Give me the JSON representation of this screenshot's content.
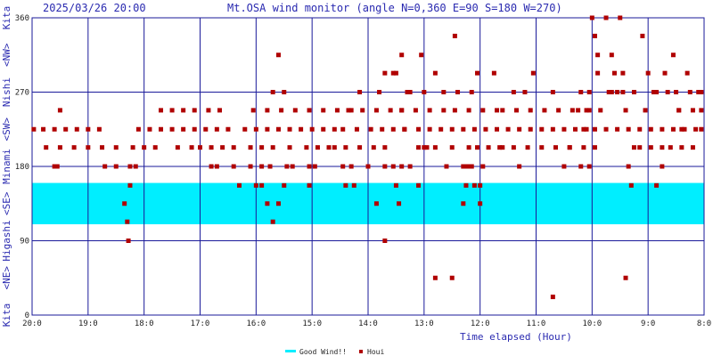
{
  "header": {
    "timestamp": "2025/03/26 20:00",
    "title": "Mt.OSA wind monitor (angle N=0,360 E=90 S=180 W=270)"
  },
  "left_axis_labels": [
    "Kita",
    "<NE>",
    "Higashi",
    "<SE>",
    "Minami",
    "<SW>",
    "Nishi",
    "<NW>",
    "Kita"
  ],
  "legend": {
    "good_wind": "Good Wind!!",
    "series": "Houi"
  },
  "colors": {
    "good_wind_band": "#00eeff",
    "marker": "#b00000",
    "grid": "#1a1a9a",
    "text": "#2a2ab0"
  },
  "chart_data": {
    "type": "scatter",
    "title": "Mt.OSA wind monitor (angle N=0,360 E=90 S=180 W=270)",
    "xlabel": "Time elapsed (Hour)",
    "ylabel": "",
    "xlim": [
      0,
      12
    ],
    "ylim": [
      0,
      360
    ],
    "x_tick_labels": [
      "20:0",
      "19:0",
      "18:0",
      "17:0",
      "16:0",
      "15:0",
      "14:0",
      "13:0",
      "12:0",
      "11:0",
      "10:0",
      "9:0",
      "8:0"
    ],
    "y_ticks": [
      0,
      90,
      180,
      270,
      360
    ],
    "good_wind_band": [
      110,
      160
    ],
    "grid": true,
    "legend_position": "bottom",
    "series": [
      {
        "name": "Houi",
        "points": [
          [
            0.03,
            225
          ],
          [
            0.2,
            225
          ],
          [
            0.4,
            225
          ],
          [
            0.6,
            225
          ],
          [
            0.8,
            225
          ],
          [
            1.0,
            225
          ],
          [
            1.2,
            225
          ],
          [
            0.25,
            203
          ],
          [
            0.5,
            203
          ],
          [
            0.75,
            203
          ],
          [
            1.0,
            203
          ],
          [
            1.25,
            203
          ],
          [
            1.5,
            203
          ],
          [
            0.4,
            180
          ],
          [
            0.45,
            180
          ],
          [
            1.3,
            180
          ],
          [
            1.5,
            180
          ],
          [
            1.75,
            180
          ],
          [
            0.5,
            248
          ],
          [
            1.65,
            135
          ],
          [
            1.7,
            113
          ],
          [
            1.72,
            90
          ],
          [
            1.75,
            157
          ],
          [
            1.8,
            203
          ],
          [
            1.85,
            180
          ],
          [
            1.9,
            225
          ],
          [
            2.1,
            225
          ],
          [
            2.3,
            225
          ],
          [
            2.5,
            225
          ],
          [
            2.7,
            225
          ],
          [
            2.9,
            225
          ],
          [
            3.1,
            225
          ],
          [
            3.3,
            225
          ],
          [
            3.5,
            225
          ],
          [
            2.0,
            203
          ],
          [
            2.2,
            203
          ],
          [
            2.6,
            203
          ],
          [
            2.85,
            203
          ],
          [
            3.0,
            203
          ],
          [
            3.2,
            203
          ],
          [
            3.4,
            203
          ],
          [
            3.6,
            203
          ],
          [
            2.3,
            248
          ],
          [
            2.5,
            248
          ],
          [
            2.7,
            248
          ],
          [
            2.9,
            248
          ],
          [
            3.15,
            248
          ],
          [
            3.35,
            248
          ],
          [
            3.2,
            180
          ],
          [
            3.3,
            180
          ],
          [
            3.6,
            180
          ],
          [
            3.7,
            157
          ],
          [
            3.9,
            180
          ],
          [
            3.8,
            225
          ],
          [
            4.0,
            225
          ],
          [
            4.2,
            225
          ],
          [
            4.4,
            225
          ],
          [
            4.6,
            225
          ],
          [
            4.8,
            225
          ],
          [
            5.0,
            225
          ],
          [
            5.2,
            225
          ],
          [
            5.4,
            225
          ],
          [
            3.9,
            203
          ],
          [
            4.1,
            203
          ],
          [
            4.3,
            203
          ],
          [
            4.6,
            203
          ],
          [
            4.9,
            203
          ],
          [
            5.1,
            203
          ],
          [
            5.3,
            203
          ],
          [
            3.95,
            248
          ],
          [
            4.2,
            248
          ],
          [
            4.45,
            248
          ],
          [
            4.7,
            248
          ],
          [
            4.95,
            248
          ],
          [
            5.2,
            248
          ],
          [
            5.45,
            248
          ],
          [
            4.3,
            270
          ],
          [
            4.5,
            270
          ],
          [
            4.4,
            315
          ],
          [
            4.2,
            135
          ],
          [
            4.4,
            135
          ],
          [
            4.1,
            180
          ],
          [
            4.25,
            180
          ],
          [
            4.55,
            180
          ],
          [
            4.65,
            180
          ],
          [
            4.95,
            180
          ],
          [
            5.05,
            180
          ],
          [
            4.0,
            157
          ],
          [
            4.1,
            157
          ],
          [
            4.3,
            113
          ],
          [
            4.5,
            157
          ],
          [
            4.95,
            157
          ],
          [
            5.4,
            203
          ],
          [
            5.6,
            203
          ],
          [
            5.85,
            203
          ],
          [
            6.1,
            203
          ],
          [
            6.3,
            203
          ],
          [
            5.55,
            180
          ],
          [
            5.7,
            180
          ],
          [
            6.0,
            180
          ],
          [
            6.3,
            180
          ],
          [
            6.45,
            180
          ],
          [
            5.55,
            225
          ],
          [
            5.8,
            225
          ],
          [
            6.05,
            225
          ],
          [
            6.25,
            225
          ],
          [
            6.45,
            225
          ],
          [
            6.65,
            225
          ],
          [
            5.65,
            248
          ],
          [
            5.9,
            248
          ],
          [
            6.15,
            248
          ],
          [
            6.4,
            248
          ],
          [
            6.6,
            248
          ],
          [
            5.6,
            157
          ],
          [
            5.85,
            270
          ],
          [
            6.2,
            270
          ],
          [
            6.5,
            293
          ],
          [
            6.7,
            270
          ],
          [
            6.6,
            315
          ],
          [
            5.7,
            248
          ],
          [
            5.75,
            157
          ],
          [
            6.15,
            135
          ],
          [
            6.5,
            157
          ],
          [
            6.55,
            135
          ],
          [
            6.3,
            293
          ],
          [
            6.45,
            293
          ],
          [
            6.95,
            315
          ],
          [
            6.6,
            180
          ],
          [
            6.75,
            180
          ],
          [
            6.9,
            203
          ],
          [
            7.05,
            203
          ],
          [
            6.65,
            225
          ],
          [
            6.9,
            225
          ],
          [
            7.1,
            225
          ],
          [
            7.3,
            225
          ],
          [
            7.5,
            225
          ],
          [
            7.7,
            225
          ],
          [
            7.9,
            225
          ],
          [
            8.1,
            225
          ],
          [
            8.3,
            225
          ],
          [
            6.6,
            248
          ],
          [
            6.85,
            248
          ],
          [
            7.1,
            248
          ],
          [
            7.35,
            248
          ],
          [
            7.55,
            248
          ],
          [
            7.8,
            248
          ],
          [
            8.05,
            248
          ],
          [
            8.3,
            248
          ],
          [
            7.0,
            270
          ],
          [
            7.2,
            293
          ],
          [
            7.35,
            270
          ],
          [
            7.6,
            270
          ],
          [
            7.85,
            270
          ],
          [
            7.95,
            293
          ],
          [
            8.25,
            293
          ],
          [
            6.3,
            90
          ],
          [
            6.75,
            270
          ],
          [
            7.4,
            180
          ],
          [
            7.7,
            180
          ],
          [
            7.75,
            157
          ],
          [
            7.85,
            180
          ],
          [
            7.0,
            203
          ],
          [
            7.2,
            203
          ],
          [
            7.5,
            203
          ],
          [
            7.8,
            203
          ],
          [
            7.95,
            203
          ],
          [
            8.15,
            203
          ],
          [
            8.35,
            203
          ],
          [
            6.9,
            157
          ],
          [
            7.2,
            45
          ],
          [
            7.5,
            45
          ],
          [
            7.55,
            338
          ],
          [
            7.7,
            135
          ],
          [
            7.75,
            180
          ],
          [
            7.8,
            180
          ],
          [
            8.0,
            157
          ],
          [
            8.0,
            135
          ],
          [
            7.9,
            157
          ],
          [
            8.05,
            180
          ],
          [
            8.5,
            225
          ],
          [
            8.7,
            225
          ],
          [
            8.9,
            225
          ],
          [
            9.1,
            225
          ],
          [
            9.3,
            225
          ],
          [
            9.5,
            225
          ],
          [
            9.7,
            225
          ],
          [
            9.9,
            225
          ],
          [
            8.4,
            248
          ],
          [
            8.65,
            248
          ],
          [
            8.9,
            248
          ],
          [
            9.15,
            248
          ],
          [
            9.4,
            248
          ],
          [
            9.65,
            248
          ],
          [
            9.9,
            248
          ],
          [
            8.4,
            203
          ],
          [
            8.6,
            203
          ],
          [
            8.85,
            203
          ],
          [
            9.1,
            203
          ],
          [
            9.35,
            203
          ],
          [
            9.6,
            203
          ],
          [
            9.85,
            203
          ],
          [
            10.05,
            203
          ],
          [
            8.6,
            270
          ],
          [
            8.8,
            270
          ],
          [
            8.95,
            293
          ],
          [
            8.7,
            180
          ],
          [
            9.3,
            270
          ],
          [
            9.5,
            180
          ],
          [
            9.8,
            180
          ],
          [
            9.3,
            22
          ],
          [
            9.6,
            203
          ],
          [
            9.95,
            180
          ],
          [
            9.85,
            225
          ],
          [
            10.05,
            225
          ],
          [
            10.25,
            225
          ],
          [
            10.45,
            225
          ],
          [
            10.65,
            225
          ],
          [
            10.85,
            225
          ],
          [
            11.05,
            225
          ],
          [
            11.25,
            225
          ],
          [
            11.45,
            225
          ],
          [
            11.65,
            225
          ],
          [
            11.85,
            225
          ],
          [
            9.75,
            248
          ],
          [
            9.95,
            248
          ],
          [
            10.15,
            248
          ],
          [
            10.35,
            270
          ],
          [
            10.55,
            270
          ],
          [
            10.75,
            270
          ],
          [
            10.95,
            248
          ],
          [
            11.15,
            270
          ],
          [
            11.35,
            270
          ],
          [
            11.55,
            248
          ],
          [
            11.75,
            270
          ],
          [
            11.95,
            248
          ],
          [
            9.8,
            270
          ],
          [
            9.95,
            270
          ],
          [
            10.1,
            293
          ],
          [
            10.0,
            360
          ],
          [
            10.05,
            338
          ],
          [
            10.1,
            315
          ],
          [
            10.25,
            360
          ],
          [
            10.35,
            315
          ],
          [
            10.4,
            293
          ],
          [
            10.5,
            360
          ],
          [
            10.55,
            293
          ],
          [
            10.3,
            270
          ],
          [
            10.45,
            270
          ],
          [
            10.6,
            248
          ],
          [
            10.65,
            180
          ],
          [
            10.7,
            157
          ],
          [
            10.6,
            45
          ],
          [
            10.75,
            203
          ],
          [
            10.9,
            338
          ],
          [
            11.0,
            293
          ],
          [
            10.85,
            203
          ],
          [
            11.05,
            203
          ],
          [
            11.25,
            180
          ],
          [
            11.4,
            203
          ],
          [
            11.6,
            203
          ],
          [
            11.8,
            203
          ],
          [
            11.95,
            225
          ],
          [
            11.1,
            270
          ],
          [
            11.3,
            293
          ],
          [
            11.5,
            270
          ],
          [
            11.7,
            293
          ],
          [
            11.9,
            270
          ],
          [
            11.45,
            315
          ],
          [
            11.55,
            248
          ],
          [
            11.15,
            157
          ],
          [
            11.25,
            203
          ],
          [
            11.6,
            225
          ],
          [
            11.8,
            248
          ],
          [
            11.95,
            270
          ]
        ]
      }
    ]
  }
}
